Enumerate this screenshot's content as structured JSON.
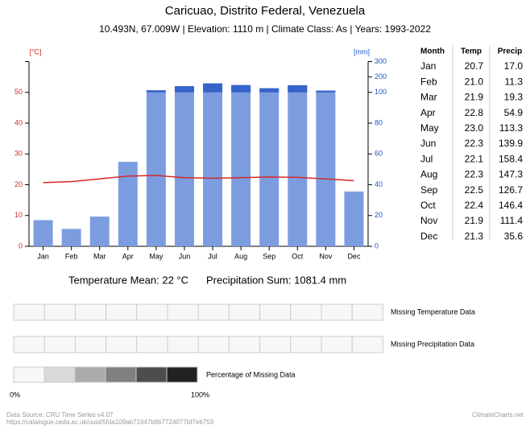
{
  "chart_data": {
    "type": "climate",
    "title": "Caricuao, Distrito Federal, Venezuela",
    "subtitle": "10.493N, 67.009W | Elevation: 1110 m | Climate Class: As | Years: 1993-2022",
    "categories": [
      "Jan",
      "Feb",
      "Mar",
      "Apr",
      "May",
      "Jun",
      "Jul",
      "Aug",
      "Sep",
      "Oct",
      "Nov",
      "Dec"
    ],
    "table_header": "Month",
    "series": [
      {
        "name": "Temp",
        "type": "line",
        "color": "#d42a2a",
        "values": [
          20.7,
          21.0,
          21.9,
          22.8,
          23.0,
          22.3,
          22.1,
          22.3,
          22.5,
          22.4,
          21.9,
          21.3
        ],
        "value_labels": [
          "20.7",
          "21.0",
          "21.9",
          "22.8",
          "23.0",
          "22.3",
          "22.1",
          "22.3",
          "22.5",
          "22.4",
          "21.9",
          "21.3"
        ]
      },
      {
        "name": "Precip",
        "type": "bar",
        "axis": "y2",
        "color": "#7b9de0",
        "color_high": "#3563c9",
        "values": [
          17.0,
          11.3,
          19.3,
          54.9,
          113.3,
          139.9,
          158.4,
          147.3,
          126.7,
          146.4,
          111.4,
          35.6
        ],
        "value_labels": [
          "17.0",
          "11.3",
          "19.3",
          "54.9",
          "113.3",
          "139.9",
          "158.4",
          "147.3",
          "126.7",
          "146.4",
          "111.4",
          "35.6"
        ]
      }
    ],
    "ylabel": "[°C]",
    "ylim": [
      0,
      60
    ],
    "yticks": [
      0,
      10,
      20,
      30,
      40,
      50
    ],
    "y2label": "[mm]",
    "y2lim": [
      0,
      300
    ],
    "y2ticks": [
      0,
      20,
      40,
      60,
      80,
      100,
      200,
      300
    ]
  },
  "summary": {
    "temperature_mean": "Temperature Mean: 22 °C",
    "precipitation_sum": "Precipitation Sum: 1081.4 mm"
  },
  "missing_data": {
    "rows": [
      "Missing Temperature Data",
      "Missing Precipitation Data"
    ],
    "legend_title": "Percentage of Missing Data",
    "legend_min": "0%",
    "legend_max": "100%",
    "legend_colors": [
      "#f7f7f7",
      "#d9d9d9",
      "#ababab",
      "#808080",
      "#4d4d4d",
      "#222222"
    ]
  },
  "footer": {
    "source": "Data Source: CRU Time Series v4.07",
    "url": "https://catalogue.ceda.ac.uk/uuid/5fda109ab71947b6b7724077bf7eb753",
    "brand": "ClimateCharts.net"
  }
}
